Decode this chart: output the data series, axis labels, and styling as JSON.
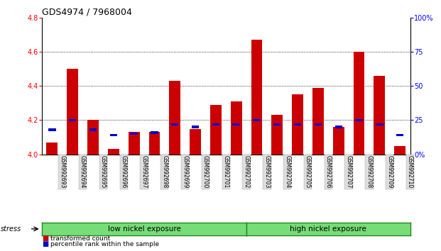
{
  "title": "GDS4974 / 7968004",
  "samples": [
    "GSM992693",
    "GSM992694",
    "GSM992695",
    "GSM992696",
    "GSM992697",
    "GSM992698",
    "GSM992699",
    "GSM992700",
    "GSM992701",
    "GSM992702",
    "GSM992703",
    "GSM992704",
    "GSM992705",
    "GSM992706",
    "GSM992707",
    "GSM992708",
    "GSM992709",
    "GSM992710"
  ],
  "red_values": [
    4.07,
    4.5,
    4.2,
    4.03,
    4.13,
    4.13,
    4.43,
    4.15,
    4.29,
    4.31,
    4.67,
    4.23,
    4.35,
    4.39,
    4.16,
    4.6,
    4.46,
    4.05
  ],
  "blue_values": [
    18,
    25,
    18,
    14,
    15,
    16,
    22,
    20,
    22,
    22,
    25,
    22,
    22,
    22,
    20,
    25,
    22,
    14
  ],
  "ymin": 4.0,
  "ymax": 4.8,
  "y2min": 0,
  "y2max": 100,
  "yticks": [
    4.0,
    4.2,
    4.4,
    4.6,
    4.8
  ],
  "y2ticks": [
    0,
    25,
    50,
    75,
    100
  ],
  "y2ticklabels": [
    "0%",
    "25",
    "50",
    "75",
    "100%"
  ],
  "red_color": "#CC0000",
  "blue_color": "#0000CC",
  "bar_width": 0.55,
  "group1_label": "low nickel exposure",
  "group2_label": "high nickel exposure",
  "stress_label": "stress",
  "legend_red": "transformed count",
  "legend_blue": "percentile rank within the sample",
  "bg_color": "#FFFFFF",
  "group_bg_color": "#77DD77",
  "group_border_color": "#228822",
  "n_group1": 10,
  "n_group2": 8
}
